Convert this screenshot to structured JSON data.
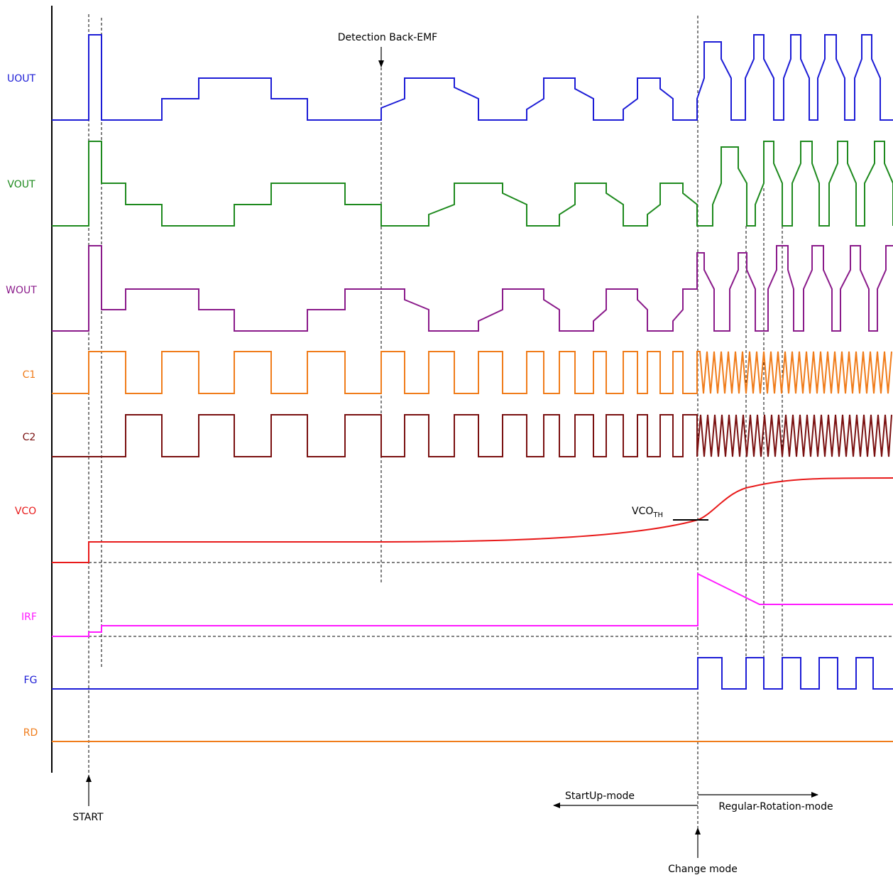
{
  "signals": [
    {
      "id": "uout",
      "label": "UOUT",
      "color": "#1c1cd6"
    },
    {
      "id": "vout",
      "label": "VOUT",
      "color": "#1e8a1e"
    },
    {
      "id": "wout",
      "label": "WOUT",
      "color": "#8a1a8a"
    },
    {
      "id": "c1",
      "label": "C1",
      "color": "#f07c1a"
    },
    {
      "id": "c2",
      "label": "C2",
      "color": "#7a1010"
    },
    {
      "id": "vco",
      "label": "VCO",
      "color": "#e81a1a"
    },
    {
      "id": "irf",
      "label": "IRF",
      "color": "#ff1aff"
    },
    {
      "id": "fg",
      "label": "FG",
      "color": "#1c1cd6"
    },
    {
      "id": "rd",
      "label": "RD",
      "color": "#f07c1a"
    }
  ],
  "annotations": {
    "detection": "Detection Back-EMF",
    "start": "START",
    "vcoth_main": "VCO",
    "vcoth_sub": "TH",
    "startup_mode": "StartUp-mode",
    "regular_mode": "Regular-Rotation-mode",
    "change_mode": "Change mode"
  }
}
